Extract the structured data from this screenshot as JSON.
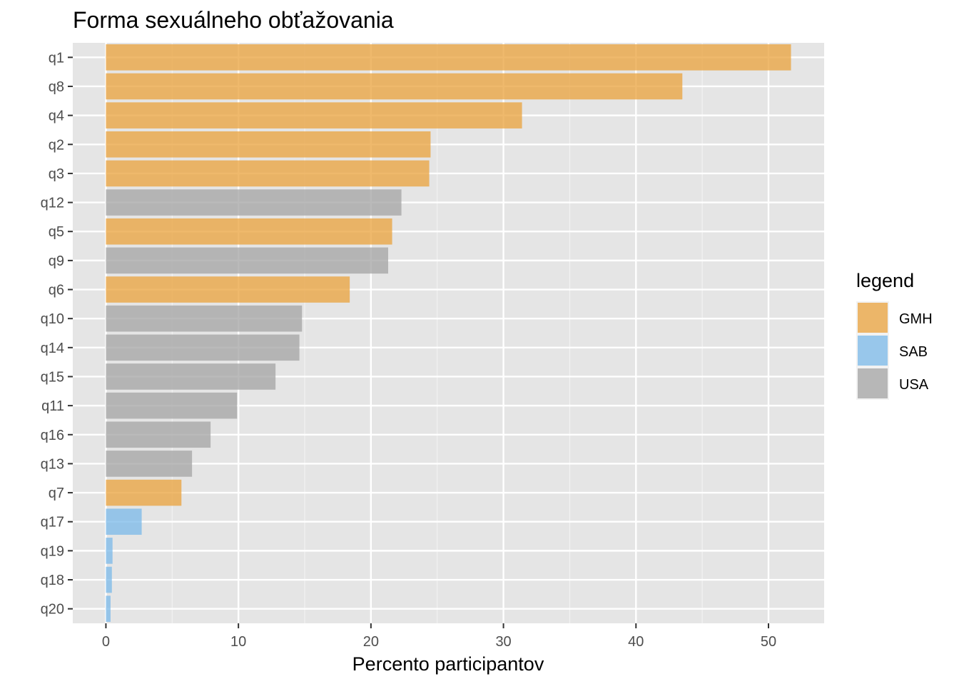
{
  "chart_data": {
    "type": "bar",
    "orientation": "horizontal",
    "title": "Forma sexuálneho obťažovania",
    "xlabel": "Percento participantov",
    "ylabel": "",
    "xlim": [
      -2.5,
      54.2
    ],
    "x_ticks": [
      0,
      10,
      20,
      30,
      40,
      50
    ],
    "grid": true,
    "legend_title": "legend",
    "legend_position": "right",
    "legend": [
      {
        "name": "GMH",
        "color": "#E9A23B"
      },
      {
        "name": "SAB",
        "color": "#79B8E8"
      },
      {
        "name": "USA",
        "color": "#A3A3A3"
      }
    ],
    "categories": [
      "q1",
      "q8",
      "q4",
      "q2",
      "q3",
      "q12",
      "q5",
      "q9",
      "q6",
      "q10",
      "q14",
      "q15",
      "q11",
      "q16",
      "q13",
      "q7",
      "q17",
      "q19",
      "q18",
      "q20"
    ],
    "values": [
      51.7,
      43.5,
      31.4,
      24.5,
      24.4,
      22.3,
      21.6,
      21.3,
      18.4,
      14.8,
      14.6,
      12.8,
      9.9,
      7.9,
      6.5,
      5.7,
      2.7,
      0.5,
      0.45,
      0.35
    ],
    "groups": [
      "GMH",
      "GMH",
      "GMH",
      "GMH",
      "GMH",
      "USA",
      "GMH",
      "USA",
      "GMH",
      "USA",
      "USA",
      "USA",
      "USA",
      "USA",
      "USA",
      "GMH",
      "SAB",
      "SAB",
      "SAB",
      "SAB"
    ]
  }
}
